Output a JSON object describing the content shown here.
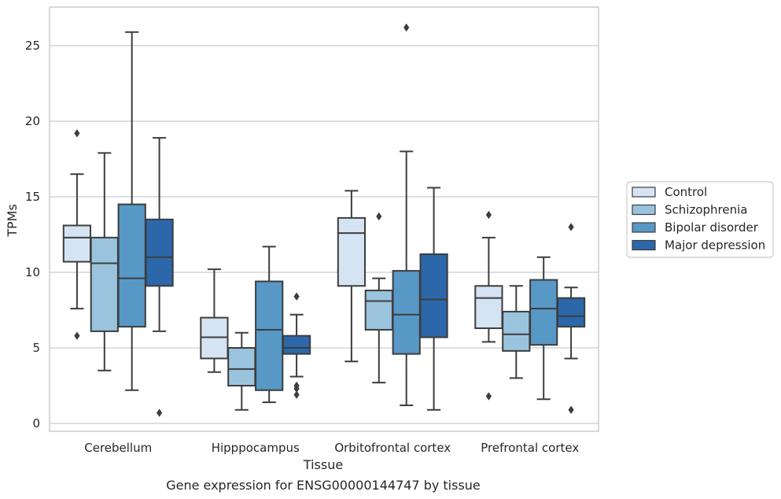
{
  "chart_data": {
    "type": "boxplot",
    "xlabel": "Tissue",
    "ylabel": "TPMs",
    "caption": "Gene expression for ENSG00000144747 by tissue",
    "ylim": [
      -0.5,
      27
    ],
    "yticks": [
      0,
      5,
      10,
      15,
      20,
      25
    ],
    "grid": "horizontal",
    "legend_position": "right-center",
    "categories": [
      "Cerebellum",
      "Hipppocampus",
      "Orbitofrontal cortex",
      "Prefrontal cortex"
    ],
    "series": [
      {
        "name": "Control",
        "color": "#d5e4f2",
        "boxes": [
          {
            "whisker_low": 7.6,
            "q1": 10.7,
            "median": 12.3,
            "q3": 13.1,
            "whisker_high": 16.5,
            "outliers": [
              5.8,
              19.2
            ]
          },
          {
            "whisker_low": 3.4,
            "q1": 4.3,
            "median": 5.7,
            "q3": 7.0,
            "whisker_high": 10.2,
            "outliers": []
          },
          {
            "whisker_low": 4.1,
            "q1": 9.1,
            "median": 12.6,
            "q3": 13.6,
            "whisker_high": 15.4,
            "outliers": []
          },
          {
            "whisker_low": 5.4,
            "q1": 6.3,
            "median": 8.3,
            "q3": 9.1,
            "whisker_high": 12.3,
            "outliers": [
              1.8,
              13.8
            ]
          }
        ]
      },
      {
        "name": "Schizophrenia",
        "color": "#9ac4de",
        "boxes": [
          {
            "whisker_low": 3.5,
            "q1": 6.1,
            "median": 10.6,
            "q3": 12.3,
            "whisker_high": 17.9,
            "outliers": []
          },
          {
            "whisker_low": 0.9,
            "q1": 2.5,
            "median": 3.6,
            "q3": 5.0,
            "whisker_high": 6.0,
            "outliers": []
          },
          {
            "whisker_low": 2.7,
            "q1": 6.2,
            "median": 8.1,
            "q3": 8.8,
            "whisker_high": 9.6,
            "outliers": [
              13.7
            ]
          },
          {
            "whisker_low": 3.0,
            "q1": 4.8,
            "median": 5.9,
            "q3": 7.4,
            "whisker_high": 9.1,
            "outliers": []
          }
        ]
      },
      {
        "name": "Bipolar disorder",
        "color": "#5898c6",
        "boxes": [
          {
            "whisker_low": 2.2,
            "q1": 6.4,
            "median": 9.6,
            "q3": 14.5,
            "whisker_high": 25.9,
            "outliers": []
          },
          {
            "whisker_low": 1.4,
            "q1": 2.2,
            "median": 6.2,
            "q3": 9.4,
            "whisker_high": 11.7,
            "outliers": []
          },
          {
            "whisker_low": 1.2,
            "q1": 4.6,
            "median": 7.2,
            "q3": 10.1,
            "whisker_high": 18.0,
            "outliers": [
              26.2
            ]
          },
          {
            "whisker_low": 1.6,
            "q1": 5.2,
            "median": 7.6,
            "q3": 9.5,
            "whisker_high": 11.0,
            "outliers": []
          }
        ]
      },
      {
        "name": "Major depression",
        "color": "#2b67a9",
        "boxes": [
          {
            "whisker_low": 6.1,
            "q1": 9.1,
            "median": 11.0,
            "q3": 13.5,
            "whisker_high": 18.9,
            "outliers": [
              0.7
            ]
          },
          {
            "whisker_low": 3.1,
            "q1": 4.6,
            "median": 5.0,
            "q3": 5.8,
            "whisker_high": 7.2,
            "outliers": [
              1.9,
              2.3,
              2.5,
              8.4
            ]
          },
          {
            "whisker_low": 0.9,
            "q1": 5.7,
            "median": 8.2,
            "q3": 11.2,
            "whisker_high": 15.6,
            "outliers": []
          },
          {
            "whisker_low": 4.3,
            "q1": 6.4,
            "median": 7.1,
            "q3": 8.3,
            "whisker_high": 9.0,
            "outliers": [
              0.9,
              13.0
            ]
          }
        ]
      }
    ]
  }
}
